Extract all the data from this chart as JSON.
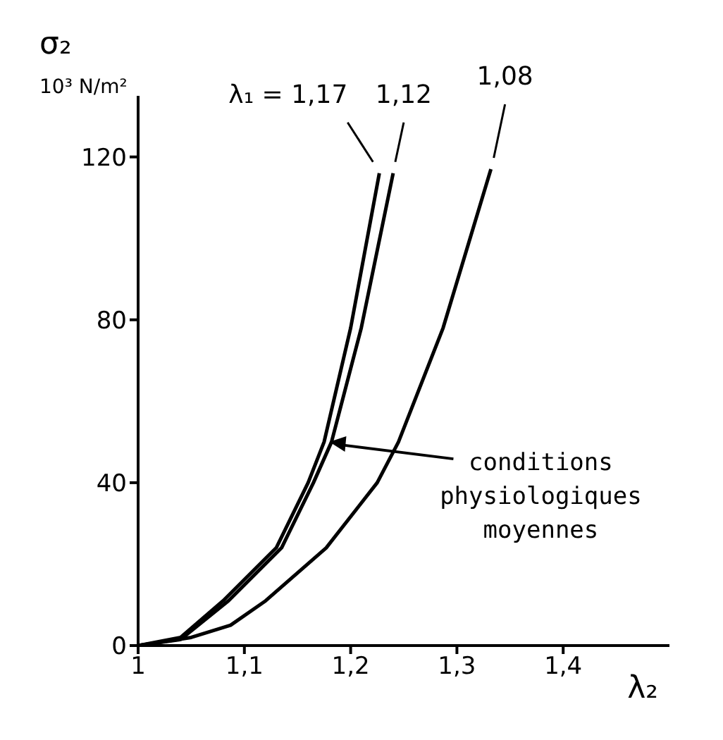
{
  "chart_data": {
    "type": "line",
    "xlabel": "λ₂",
    "ylabel": "σ₂\n10³ N/m²",
    "xlim": [
      1,
      1.5
    ],
    "xticks": [
      1,
      {
        "value": 1.1,
        "label": "1,1"
      },
      {
        "value": 1.2,
        "label": "1,2"
      },
      {
        "value": 1.3,
        "label": "1,3"
      },
      {
        "value": 1.4,
        "label": "1,4"
      }
    ],
    "ylim": [
      0,
      135
    ],
    "yticks": [
      0,
      40,
      80,
      120
    ],
    "grid": false,
    "legend": false,
    "marker": "none",
    "line_style": "solid",
    "series": [
      {
        "name": "λ₁ = 1,17",
        "color": "#000000",
        "x": [
          1,
          1.04,
          1.08,
          1.13,
          1.16,
          1.175,
          1.2,
          1.227
        ],
        "values": [
          0,
          2,
          11,
          24,
          40,
          50,
          78,
          116
        ]
      },
      {
        "name": "1,12",
        "color": "#000000",
        "x": [
          1,
          1.04,
          1.085,
          1.135,
          1.165,
          1.182,
          1.21,
          1.24
        ],
        "values": [
          0,
          1.5,
          11,
          24,
          40,
          50,
          78,
          116
        ]
      },
      {
        "name": "1,08",
        "color": "#000000",
        "x": [
          1,
          1.05,
          1.087,
          1.12,
          1.177,
          1.225,
          1.245,
          1.287,
          1.332
        ],
        "values": [
          0,
          2,
          5,
          11,
          24,
          40,
          50,
          78,
          117
        ]
      }
    ],
    "annotations": [
      {
        "text": "conditions physiologiques moyennes",
        "x": 1.18,
        "y": 50
      }
    ]
  }
}
